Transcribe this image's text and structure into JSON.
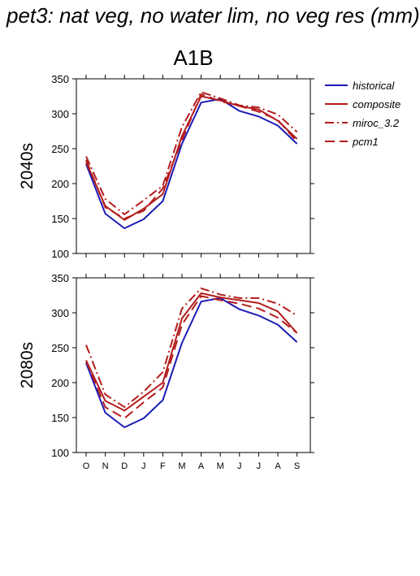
{
  "title": "pet3: nat veg, no water lim, no veg res (mm)",
  "chart_data": {
    "type": "line",
    "panel_title": "A1B",
    "categories": [
      "O",
      "N",
      "D",
      "J",
      "F",
      "M",
      "A",
      "M",
      "J",
      "J",
      "A",
      "S"
    ],
    "ylim": [
      100,
      350
    ],
    "yticks": [
      100,
      150,
      200,
      250,
      300,
      350
    ],
    "grid": false,
    "legend_position": "top-right",
    "series_styles": [
      {
        "name": "historical",
        "color": "#1c1cb4",
        "dash": ""
      },
      {
        "name": "composite",
        "color": "#b41c1c",
        "dash": ""
      },
      {
        "name": "miroc_3.2",
        "color": "#b41c1c",
        "dash": "11,4,2,4"
      },
      {
        "name": "pcm1",
        "color": "#b41c1c",
        "dash": "12,6"
      }
    ],
    "panels": [
      {
        "ylabel": "2040s",
        "series": [
          {
            "name": "historical",
            "values": [
              228,
              157,
              136,
              149,
              175,
              257,
              316,
              321,
              304,
              296,
              283,
              257
            ]
          },
          {
            "name": "composite",
            "values": [
              231,
              168,
              148,
              164,
              185,
              268,
              325,
              319,
              311,
              306,
              290,
              264
            ]
          },
          {
            "name": "miroc_3.2",
            "values": [
              239,
              178,
              156,
              176,
              197,
              281,
              331,
              322,
              312,
              309,
              299,
              274
            ]
          },
          {
            "name": "pcm1",
            "values": [
              234,
              166,
              150,
              161,
              193,
              262,
              328,
              318,
              311,
              303,
              291,
              260
            ]
          }
        ]
      },
      {
        "ylabel": "2080s",
        "series": [
          {
            "name": "historical",
            "values": [
              228,
              157,
              136,
              149,
              175,
              257,
              316,
              321,
              305,
              296,
              283,
              258
            ]
          },
          {
            "name": "composite",
            "values": [
              232,
              174,
              160,
              180,
              200,
              292,
              328,
              322,
              318,
              314,
              302,
              271
            ]
          },
          {
            "name": "miroc_3.2",
            "values": [
              254,
              183,
              165,
              187,
              215,
              306,
              335,
              326,
              321,
              321,
              313,
              296
            ]
          },
          {
            "name": "pcm1",
            "values": [
              231,
              165,
              149,
              172,
              193,
              283,
              324,
              318,
              313,
              306,
              293,
              271
            ]
          }
        ]
      }
    ]
  }
}
